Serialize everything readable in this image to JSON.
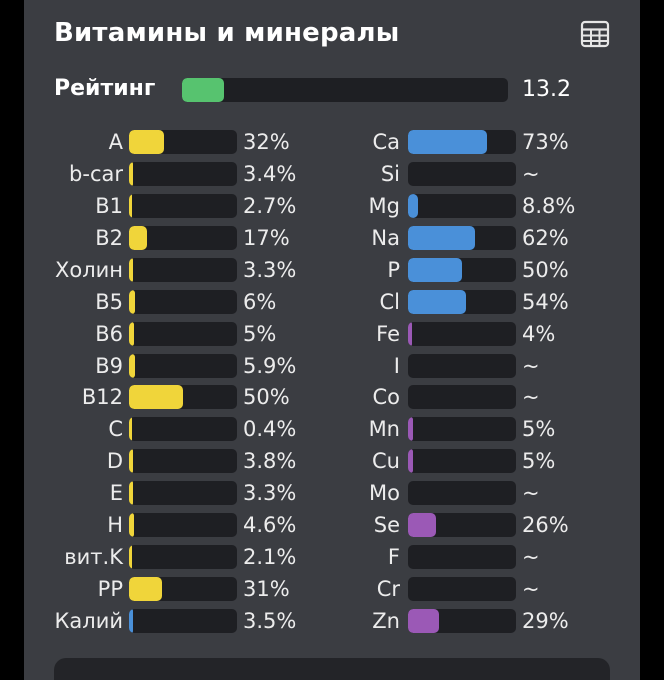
{
  "section": {
    "title": "Витамины и минералы",
    "table_icon": "table-grid-icon"
  },
  "rating": {
    "label": "Рейтинг",
    "value": "13.2",
    "fill_fraction": 0.13,
    "color": "#57c36f"
  },
  "colors": {
    "vitamin": "#f0d53a",
    "mineral": "#4a90d9",
    "micro": "#9b59b6",
    "track": "#1e1f23"
  },
  "vitamins": [
    {
      "name": "A",
      "value": "32%",
      "pct": 32,
      "color": "#f0d53a"
    },
    {
      "name": "b-car",
      "value": "3.4%",
      "pct": 3.4,
      "color": "#f0d53a"
    },
    {
      "name": "B1",
      "value": "2.7%",
      "pct": 2.7,
      "color": "#f0d53a"
    },
    {
      "name": "B2",
      "value": "17%",
      "pct": 17,
      "color": "#f0d53a"
    },
    {
      "name": "Холин",
      "value": "3.3%",
      "pct": 3.3,
      "color": "#f0d53a"
    },
    {
      "name": "B5",
      "value": "6%",
      "pct": 6,
      "color": "#f0d53a"
    },
    {
      "name": "B6",
      "value": "5%",
      "pct": 5,
      "color": "#f0d53a"
    },
    {
      "name": "B9",
      "value": "5.9%",
      "pct": 5.9,
      "color": "#f0d53a"
    },
    {
      "name": "B12",
      "value": "50%",
      "pct": 50,
      "color": "#f0d53a"
    },
    {
      "name": "C",
      "value": "0.4%",
      "pct": 0.4,
      "color": "#f0d53a"
    },
    {
      "name": "D",
      "value": "3.8%",
      "pct": 3.8,
      "color": "#f0d53a"
    },
    {
      "name": "E",
      "value": "3.3%",
      "pct": 3.3,
      "color": "#f0d53a"
    },
    {
      "name": "H",
      "value": "4.6%",
      "pct": 4.6,
      "color": "#f0d53a"
    },
    {
      "name": "вит.K",
      "value": "2.1%",
      "pct": 2.1,
      "color": "#f0d53a"
    },
    {
      "name": "PP",
      "value": "31%",
      "pct": 31,
      "color": "#f0d53a"
    },
    {
      "name": "Калий",
      "value": "3.5%",
      "pct": 3.5,
      "color": "#4a90d9"
    }
  ],
  "minerals": [
    {
      "name": "Ca",
      "value": "73%",
      "pct": 73,
      "color": "#4a90d9"
    },
    {
      "name": "Si",
      "value": "~",
      "pct": 0,
      "color": "#4a90d9"
    },
    {
      "name": "Mg",
      "value": "8.8%",
      "pct": 8.8,
      "color": "#4a90d9"
    },
    {
      "name": "Na",
      "value": "62%",
      "pct": 62,
      "color": "#4a90d9"
    },
    {
      "name": "P",
      "value": "50%",
      "pct": 50,
      "color": "#4a90d9"
    },
    {
      "name": "Cl",
      "value": "54%",
      "pct": 54,
      "color": "#4a90d9"
    },
    {
      "name": "Fe",
      "value": "4%",
      "pct": 4,
      "color": "#9b59b6"
    },
    {
      "name": "I",
      "value": "~",
      "pct": 0,
      "color": "#9b59b6"
    },
    {
      "name": "Co",
      "value": "~",
      "pct": 0,
      "color": "#9b59b6"
    },
    {
      "name": "Mn",
      "value": "5%",
      "pct": 5,
      "color": "#9b59b6"
    },
    {
      "name": "Cu",
      "value": "5%",
      "pct": 5,
      "color": "#9b59b6"
    },
    {
      "name": "Mo",
      "value": "~",
      "pct": 0,
      "color": "#9b59b6"
    },
    {
      "name": "Se",
      "value": "26%",
      "pct": 26,
      "color": "#9b59b6"
    },
    {
      "name": "F",
      "value": "~",
      "pct": 0,
      "color": "#9b59b6"
    },
    {
      "name": "Cr",
      "value": "~",
      "pct": 0,
      "color": "#9b59b6"
    },
    {
      "name": "Zn",
      "value": "29%",
      "pct": 29,
      "color": "#9b59b6"
    }
  ]
}
